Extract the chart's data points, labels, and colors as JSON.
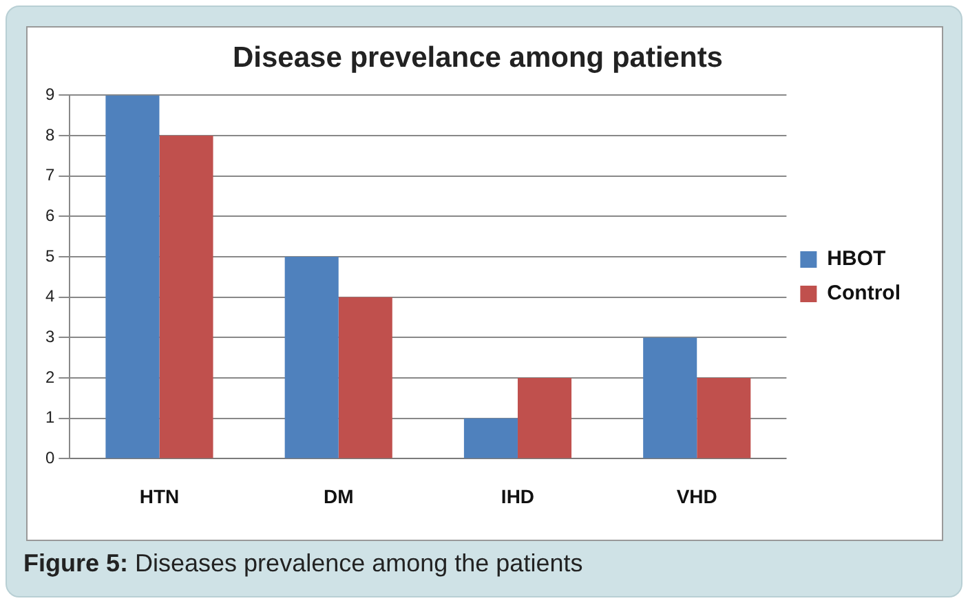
{
  "chart_data": {
    "type": "bar",
    "title": "Disease prevelance among patients",
    "categories": [
      "HTN",
      "DM",
      "IHD",
      "VHD"
    ],
    "series": [
      {
        "name": "HBOT",
        "color": "#4f81bd",
        "values": [
          9,
          5,
          1,
          3
        ]
      },
      {
        "name": "Control",
        "color": "#c0504d",
        "values": [
          8,
          4,
          2,
          2
        ]
      }
    ],
    "ylim": [
      0,
      9
    ],
    "yticks": [
      0,
      1,
      2,
      3,
      4,
      5,
      6,
      7,
      8,
      9
    ],
    "grid": "y",
    "legend": "right",
    "annotations": [
      "Figure 5: Diseases prevalence among the patients"
    ]
  }
}
